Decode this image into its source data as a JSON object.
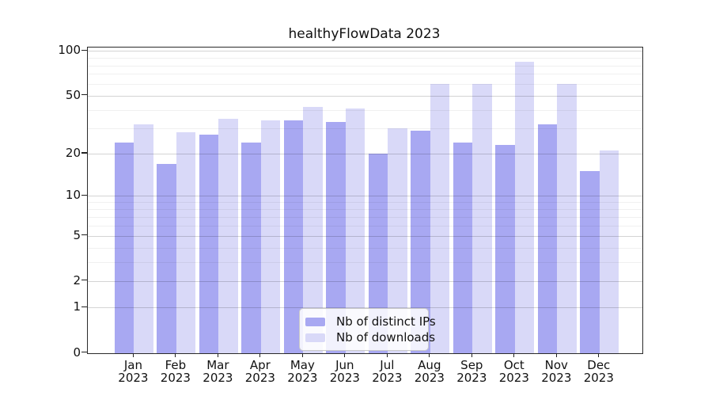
{
  "title": "healthyFlowData 2023",
  "chart_data": {
    "type": "bar",
    "title": "healthyFlowData 2023",
    "categories": [
      "Jan 2023",
      "Feb 2023",
      "Mar 2023",
      "Apr 2023",
      "May 2023",
      "Jun 2023",
      "Jul 2023",
      "Aug 2023",
      "Sep 2023",
      "Oct 2023",
      "Nov 2023",
      "Dec 2023"
    ],
    "series": [
      {
        "name": "Nb of distinct IPs",
        "color": "#a8a8f2",
        "values": [
          24,
          17,
          27,
          24,
          34,
          33,
          20,
          29,
          24,
          23,
          32,
          15
        ]
      },
      {
        "name": "Nb of downloads",
        "color": "#d9d9f8",
        "values": [
          32,
          28,
          35,
          34,
          42,
          41,
          30,
          60,
          60,
          85,
          60,
          21
        ]
      }
    ],
    "y_scale": "symlog",
    "y_ticks": [
      100,
      50,
      20,
      10,
      5,
      2,
      1,
      0
    ],
    "y_minor_gridlines": [
      3,
      4,
      6,
      7,
      8,
      9,
      30,
      40,
      60,
      70,
      80,
      90
    ],
    "ylim": [
      0,
      100
    ],
    "grid": true,
    "legend_position": "inside-bottom-center"
  },
  "y_axis": {
    "tick_labels": [
      "100",
      "50",
      "20",
      "10",
      "5",
      "2",
      "1",
      "0"
    ],
    "tick_values": [
      100,
      50,
      20,
      10,
      5,
      2,
      1,
      0
    ]
  },
  "x_axis": {
    "months": [
      "Jan",
      "Feb",
      "Mar",
      "Apr",
      "May",
      "Jun",
      "Jul",
      "Aug",
      "Sep",
      "Oct",
      "Nov",
      "Dec"
    ],
    "year": "2023"
  },
  "legend": {
    "items": [
      {
        "label": "Nb of distinct IPs"
      },
      {
        "label": "Nb of downloads"
      }
    ]
  }
}
